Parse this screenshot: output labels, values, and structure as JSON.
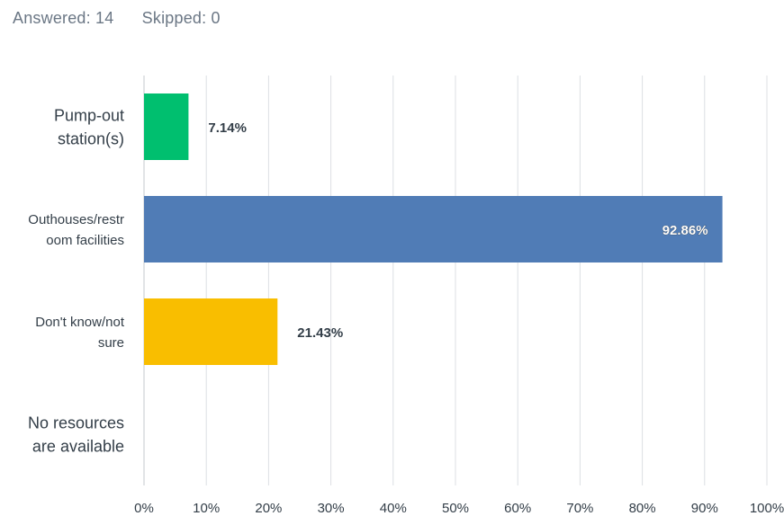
{
  "summary": {
    "answered": "Answered: 14",
    "skipped": "Skipped: 0"
  },
  "colors": {
    "grid": "#dcdfe3",
    "axis": "#c4c8cd",
    "text": "#333e48",
    "muted": "#6b7785"
  },
  "chart_data": {
    "type": "bar",
    "orientation": "horizontal",
    "categories": [
      [
        "Pump-out",
        "station(s)"
      ],
      [
        "Outhouses/restr",
        "oom facilities"
      ],
      [
        "Don't know/not",
        "sure"
      ],
      [
        "No resources",
        "are available"
      ]
    ],
    "values": [
      7.14,
      92.86,
      21.43,
      0
    ],
    "value_labels": [
      "7.14%",
      "92.86%",
      "21.43%",
      ""
    ],
    "bar_colors": [
      "#00bf6f",
      "#507cb6",
      "#f9be00",
      "#6bc8cd"
    ],
    "xlim": [
      0,
      100
    ],
    "x_ticks": [
      "0%",
      "10%",
      "20%",
      "30%",
      "40%",
      "50%",
      "60%",
      "70%",
      "80%",
      "90%",
      "100%"
    ],
    "grid": true,
    "legend": "none"
  }
}
